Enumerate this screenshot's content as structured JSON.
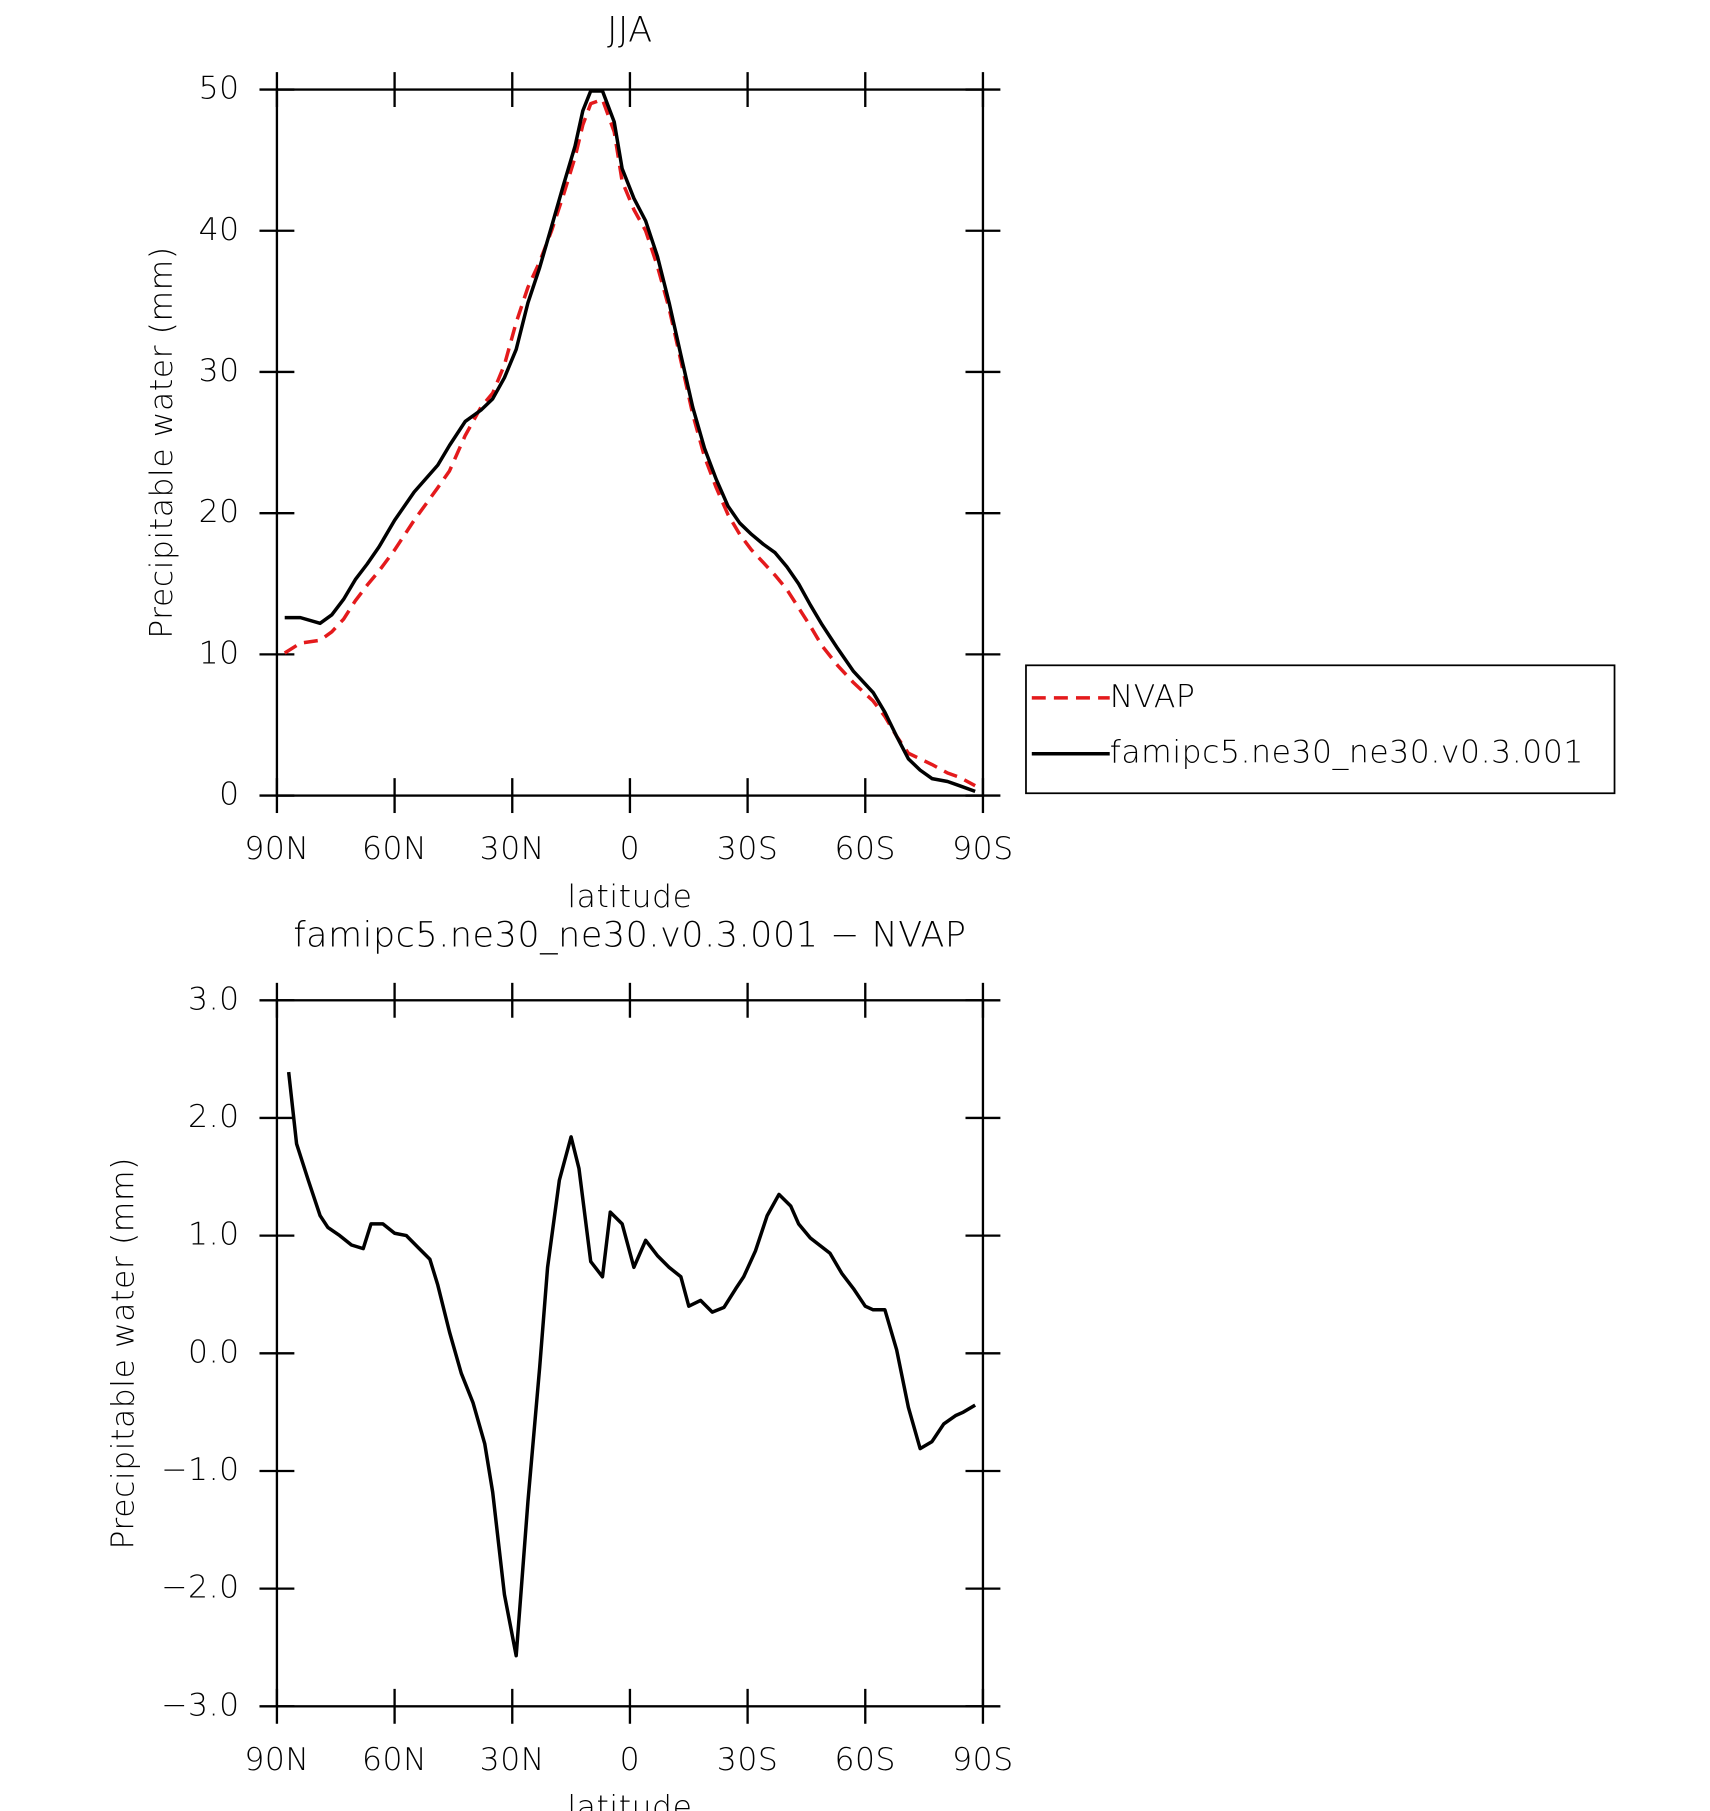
{
  "chart_data": [
    {
      "type": "line",
      "title": "JJA",
      "xlabel": "latitude",
      "ylabel": "Precipitable water (mm)",
      "x": [
        88,
        84,
        79,
        76,
        73,
        70,
        67,
        64,
        60,
        55,
        49,
        46,
        42,
        38,
        35,
        32,
        29,
        26,
        23,
        20,
        17,
        14,
        12,
        10,
        7,
        4,
        2,
        -1,
        -4,
        -7,
        -10,
        -13,
        -16,
        -19,
        -22,
        -25,
        -28,
        -31,
        -34,
        -37,
        -40,
        -43,
        -46,
        -49,
        -53,
        -57,
        -62,
        -65,
        -68,
        -71,
        -74,
        -77,
        -81,
        -84,
        -88
      ],
      "xlim": [
        90,
        -90
      ],
      "xticks": [
        {
          "value": 90,
          "label": "90N"
        },
        {
          "value": 60,
          "label": "60N"
        },
        {
          "value": 30,
          "label": "30N"
        },
        0,
        {
          "value": -30,
          "label": "30S"
        },
        {
          "value": -60,
          "label": "60S"
        },
        {
          "value": -90,
          "label": "90S"
        }
      ],
      "ylim": [
        0,
        50
      ],
      "yticks": [
        0,
        10,
        20,
        30,
        40,
        50
      ],
      "legend": "right",
      "series": [
        {
          "name": "NVAP",
          "color": "#e41a1c",
          "style": "dashed",
          "values": [
            10.1,
            10.8,
            11.0,
            11.6,
            12.5,
            13.8,
            14.9,
            15.9,
            17.4,
            19.5,
            21.8,
            23.0,
            25.5,
            27.5,
            28.5,
            30.5,
            33.5,
            36.0,
            37.8,
            40.0,
            42.5,
            45.2,
            47.5,
            49.0,
            49.3,
            47.0,
            43.5,
            41.5,
            40.0,
            37.5,
            34.5,
            30.8,
            27.0,
            24.0,
            21.8,
            19.9,
            18.5,
            17.4,
            16.5,
            15.6,
            14.6,
            13.3,
            12.0,
            10.6,
            9.2,
            8.0,
            6.7,
            5.6,
            4.2,
            3.0,
            2.6,
            2.2,
            1.6,
            1.3,
            0.7
          ]
        },
        {
          "name": "famipc5.ne30_ne30.v0.3.001",
          "color": "#000000",
          "style": "solid",
          "values": [
            12.6,
            12.6,
            12.2,
            12.8,
            13.9,
            15.3,
            16.4,
            17.6,
            19.5,
            21.5,
            23.4,
            24.8,
            26.5,
            27.3,
            28.1,
            29.6,
            31.6,
            34.9,
            37.4,
            40.3,
            43.2,
            46.0,
            48.5,
            49.9,
            49.9,
            47.7,
            44.4,
            42.3,
            40.7,
            38.2,
            34.9,
            31.2,
            27.5,
            24.6,
            22.4,
            20.5,
            19.3,
            18.5,
            17.8,
            17.2,
            16.2,
            15.0,
            13.5,
            12.1,
            10.4,
            8.8,
            7.3,
            5.9,
            4.2,
            2.6,
            1.8,
            1.2,
            1.0,
            0.7,
            0.3
          ]
        }
      ]
    },
    {
      "type": "line",
      "title": "famipc5.ne30_ne30.v0.3.001 − NVAP",
      "xlabel": "latitude",
      "ylabel": "Precipitable water (mm)",
      "x": [
        87,
        85,
        82,
        79,
        77,
        74,
        71,
        68,
        66,
        63,
        60,
        57,
        54,
        51,
        49,
        46,
        43,
        40,
        37,
        35,
        32,
        29,
        26,
        23,
        21,
        18,
        15,
        13,
        10,
        7,
        5,
        2,
        -1,
        -4,
        -7,
        -10,
        -13,
        -15,
        -18,
        -21,
        -24,
        -27,
        -29,
        -32,
        -35,
        -38,
        -41,
        -43,
        -46,
        -51,
        -54,
        -57,
        -60,
        -62,
        -65,
        -68,
        -71,
        -74,
        -77,
        -80,
        -83,
        -85,
        -88
      ],
      "xlim": [
        90,
        -90
      ],
      "xticks": [
        {
          "value": 90,
          "label": "90N"
        },
        {
          "value": 60,
          "label": "60N"
        },
        {
          "value": 30,
          "label": "30N"
        },
        0,
        {
          "value": -30,
          "label": "30S"
        },
        {
          "value": -60,
          "label": "60S"
        },
        {
          "value": -90,
          "label": "90S"
        }
      ],
      "ylim": [
        -3,
        3
      ],
      "yticks": [
        {
          "value": -3,
          "label": "−3.0"
        },
        {
          "value": -2,
          "label": "−2.0"
        },
        {
          "value": -1,
          "label": "−1.0"
        },
        {
          "value": 0,
          "label": "0.0"
        },
        {
          "value": 1,
          "label": "1.0"
        },
        {
          "value": 2,
          "label": "2.0"
        },
        {
          "value": 3,
          "label": "3.0"
        }
      ],
      "color": "#000000",
      "values": [
        2.39,
        1.78,
        1.47,
        1.17,
        1.07,
        1.0,
        0.92,
        0.89,
        1.1,
        1.1,
        1.02,
        1.0,
        0.9,
        0.8,
        0.58,
        0.18,
        -0.17,
        -0.42,
        -0.77,
        -1.18,
        -2.05,
        -2.57,
        -1.26,
        -0.12,
        0.73,
        1.47,
        1.84,
        1.57,
        0.78,
        0.65,
        1.2,
        1.1,
        0.73,
        0.96,
        0.83,
        0.73,
        0.65,
        0.4,
        0.45,
        0.35,
        0.39,
        0.55,
        0.65,
        0.87,
        1.17,
        1.35,
        1.25,
        1.1,
        0.98,
        0.85,
        0.68,
        0.55,
        0.4,
        0.37,
        0.37,
        0.03,
        -0.46,
        -0.81,
        -0.75,
        -0.6,
        -0.53,
        -0.5,
        -0.44
      ]
    }
  ]
}
